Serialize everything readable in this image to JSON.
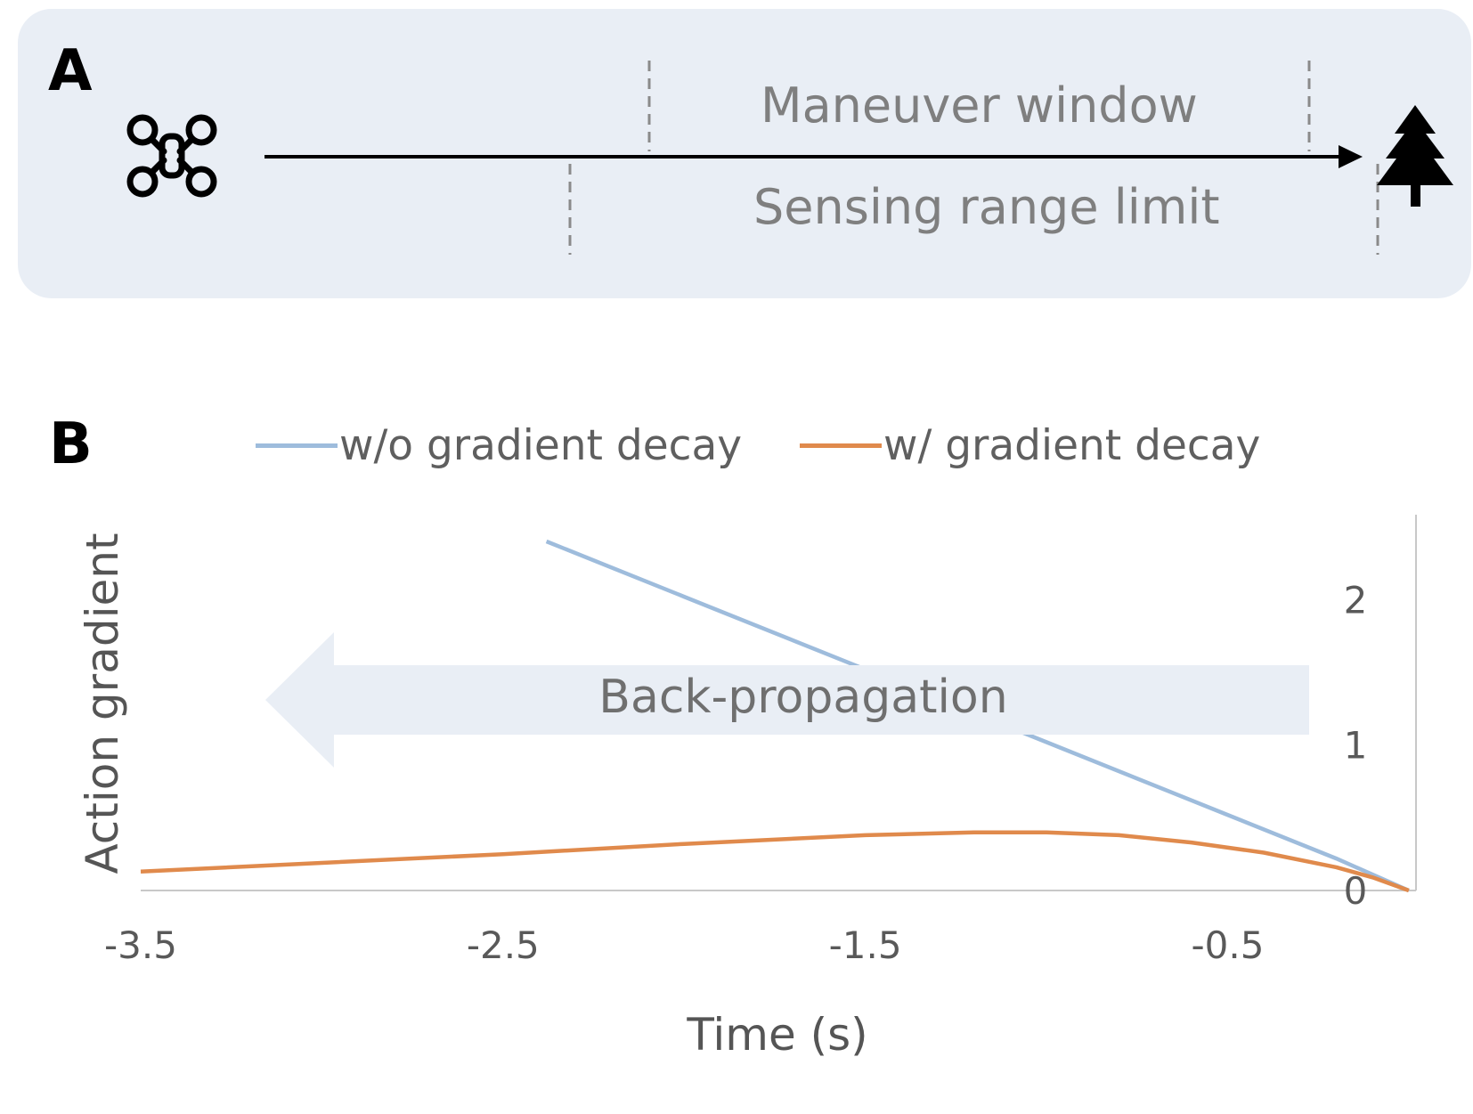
{
  "panel_a": {
    "letter": "A",
    "maneuver_label": "Maneuver window",
    "sensing_label": "Sensing range limit",
    "icons": [
      "drone-icon",
      "tree-icon"
    ]
  },
  "panel_b": {
    "letter": "B"
  },
  "colors": {
    "panel_bg": "#e9eef5",
    "series_no_decay": "#9ebcdc",
    "series_decay": "#e08a4c",
    "arrow_fill": "#e9eef5",
    "text_gray": "#7f7f7f"
  },
  "chart_data": {
    "type": "line",
    "title": "",
    "xlabel": "Time (s)",
    "ylabel": "Action gradient",
    "xlim": [
      -3.5,
      0.02
    ],
    "ylim": [
      0,
      2.4
    ],
    "xticks": [
      "-3.5",
      "-2.5",
      "-1.5",
      "-0.5"
    ],
    "xtick_values": [
      -3.5,
      -2.5,
      -1.5,
      -0.5
    ],
    "yticks": [
      "0",
      "1",
      "2"
    ],
    "ytick_values": [
      0,
      1,
      2
    ],
    "y_axis_position": "right",
    "grid": false,
    "legend_position": "top",
    "annotation": "Back-propagation",
    "series": [
      {
        "name": "w/o gradient decay",
        "x": [
          -2.38,
          -2.0,
          -1.5,
          -1.0,
          -0.5,
          -0.2,
          0.0
        ],
        "y": [
          2.4,
          2.02,
          1.52,
          1.02,
          0.52,
          0.22,
          0.0
        ]
      },
      {
        "name": "w/ gradient decay",
        "x": [
          -3.5,
          -3.0,
          -2.5,
          -2.0,
          -1.5,
          -1.2,
          -1.0,
          -0.8,
          -0.6,
          -0.4,
          -0.2,
          -0.1,
          0.0
        ],
        "y": [
          0.13,
          0.19,
          0.25,
          0.32,
          0.38,
          0.4,
          0.4,
          0.38,
          0.33,
          0.26,
          0.16,
          0.09,
          0.0
        ]
      }
    ]
  }
}
